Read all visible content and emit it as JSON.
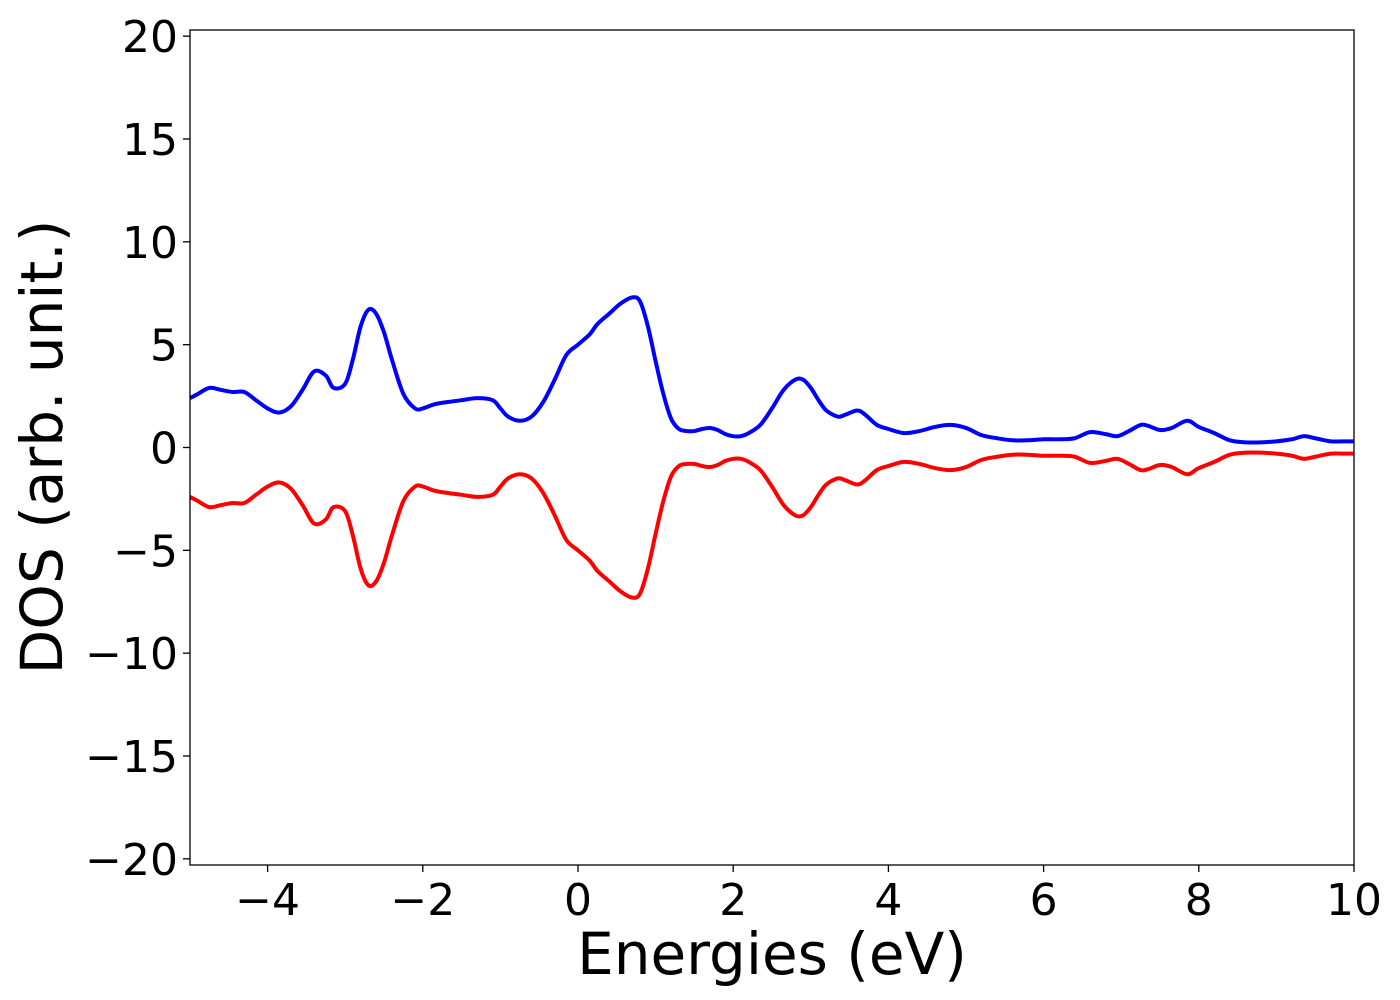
{
  "chart_data": {
    "type": "line",
    "xlabel": "Energies (eV)",
    "ylabel": "DOS (arb. unit.)",
    "xlim": [
      -5,
      10
    ],
    "ylim": [
      -20.3,
      20.3
    ],
    "xticks": [
      -4,
      -2,
      0,
      2,
      4,
      6,
      8,
      10
    ],
    "yticks": [
      -20,
      -15,
      -10,
      -5,
      0,
      5,
      10,
      15,
      20
    ],
    "xtick_labels": [
      "−4",
      "−2",
      "0",
      "2",
      "4",
      "6",
      "8",
      "10"
    ],
    "ytick_labels": [
      "−20",
      "−15",
      "−10",
      "−5",
      "0",
      "5",
      "10",
      "15",
      "20"
    ],
    "grid": false,
    "legend": "none",
    "series": [
      {
        "color": "#0000ff",
        "x": [
          -5.0,
          -4.9,
          -4.75,
          -4.6,
          -4.45,
          -4.3,
          -4.15,
          -4.0,
          -3.85,
          -3.7,
          -3.55,
          -3.4,
          -3.25,
          -3.15,
          -3.0,
          -2.9,
          -2.8,
          -2.7,
          -2.6,
          -2.5,
          -2.4,
          -2.25,
          -2.1,
          -2.0,
          -1.85,
          -1.7,
          -1.5,
          -1.3,
          -1.1,
          -1.0,
          -0.9,
          -0.75,
          -0.6,
          -0.45,
          -0.3,
          -0.15,
          0.0,
          0.15,
          0.25,
          0.4,
          0.55,
          0.7,
          0.8,
          0.9,
          1.0,
          1.1,
          1.2,
          1.3,
          1.4,
          1.5,
          1.6,
          1.7,
          1.8,
          1.9,
          2.0,
          2.1,
          2.2,
          2.35,
          2.5,
          2.65,
          2.8,
          2.9,
          3.0,
          3.1,
          3.2,
          3.35,
          3.45,
          3.6,
          3.7,
          3.85,
          4.0,
          4.2,
          4.4,
          4.6,
          4.8,
          5.0,
          5.2,
          5.4,
          5.6,
          5.8,
          6.0,
          6.2,
          6.4,
          6.6,
          6.8,
          6.95,
          7.1,
          7.25,
          7.35,
          7.5,
          7.65,
          7.85,
          8.0,
          8.2,
          8.4,
          8.6,
          8.8,
          9.0,
          9.2,
          9.35,
          9.5,
          9.7,
          9.85,
          10.0
        ],
        "y": [
          2.4,
          2.6,
          2.9,
          2.8,
          2.7,
          2.7,
          2.3,
          1.9,
          1.7,
          2.0,
          2.8,
          3.7,
          3.5,
          2.9,
          3.1,
          4.3,
          5.9,
          6.7,
          6.5,
          5.6,
          4.3,
          2.6,
          1.9,
          1.9,
          2.1,
          2.2,
          2.3,
          2.4,
          2.3,
          1.9,
          1.5,
          1.3,
          1.5,
          2.2,
          3.3,
          4.5,
          5.0,
          5.5,
          6.0,
          6.5,
          7.0,
          7.3,
          7.1,
          5.9,
          4.2,
          2.6,
          1.4,
          0.9,
          0.8,
          0.8,
          0.9,
          0.95,
          0.85,
          0.65,
          0.55,
          0.55,
          0.7,
          1.1,
          1.9,
          2.8,
          3.3,
          3.3,
          2.9,
          2.3,
          1.8,
          1.5,
          1.6,
          1.8,
          1.6,
          1.1,
          0.9,
          0.7,
          0.8,
          1.0,
          1.1,
          0.95,
          0.6,
          0.45,
          0.35,
          0.35,
          0.4,
          0.4,
          0.45,
          0.75,
          0.65,
          0.55,
          0.8,
          1.1,
          1.05,
          0.85,
          0.95,
          1.3,
          1.0,
          0.7,
          0.35,
          0.25,
          0.25,
          0.3,
          0.4,
          0.55,
          0.45,
          0.3,
          0.3,
          0.3
        ]
      },
      {
        "color": "#ff0000",
        "x": [
          -5.0,
          -4.9,
          -4.75,
          -4.6,
          -4.45,
          -4.3,
          -4.15,
          -4.0,
          -3.85,
          -3.7,
          -3.55,
          -3.4,
          -3.25,
          -3.15,
          -3.0,
          -2.9,
          -2.8,
          -2.7,
          -2.6,
          -2.5,
          -2.4,
          -2.25,
          -2.1,
          -2.0,
          -1.85,
          -1.7,
          -1.5,
          -1.3,
          -1.1,
          -1.0,
          -0.9,
          -0.75,
          -0.6,
          -0.45,
          -0.3,
          -0.15,
          0.0,
          0.15,
          0.25,
          0.4,
          0.55,
          0.7,
          0.8,
          0.9,
          1.0,
          1.1,
          1.2,
          1.3,
          1.4,
          1.5,
          1.6,
          1.7,
          1.8,
          1.9,
          2.0,
          2.1,
          2.2,
          2.35,
          2.5,
          2.65,
          2.8,
          2.9,
          3.0,
          3.1,
          3.2,
          3.35,
          3.45,
          3.6,
          3.7,
          3.85,
          4.0,
          4.2,
          4.4,
          4.6,
          4.8,
          5.0,
          5.2,
          5.4,
          5.6,
          5.8,
          6.0,
          6.2,
          6.4,
          6.6,
          6.8,
          6.95,
          7.1,
          7.25,
          7.35,
          7.5,
          7.65,
          7.85,
          8.0,
          8.2,
          8.4,
          8.6,
          8.8,
          9.0,
          9.2,
          9.35,
          9.5,
          9.7,
          9.85,
          10.0
        ],
        "y": [
          -2.4,
          -2.6,
          -2.9,
          -2.8,
          -2.7,
          -2.7,
          -2.3,
          -1.9,
          -1.7,
          -2.0,
          -2.8,
          -3.7,
          -3.5,
          -2.9,
          -3.1,
          -4.3,
          -5.9,
          -6.7,
          -6.5,
          -5.6,
          -4.3,
          -2.6,
          -1.9,
          -1.9,
          -2.1,
          -2.2,
          -2.3,
          -2.4,
          -2.3,
          -1.9,
          -1.5,
          -1.3,
          -1.5,
          -2.2,
          -3.3,
          -4.5,
          -5.0,
          -5.5,
          -6.0,
          -6.5,
          -7.0,
          -7.3,
          -7.1,
          -5.9,
          -4.2,
          -2.6,
          -1.4,
          -0.9,
          -0.8,
          -0.8,
          -0.9,
          -0.95,
          -0.85,
          -0.65,
          -0.55,
          -0.55,
          -0.7,
          -1.1,
          -1.9,
          -2.8,
          -3.3,
          -3.3,
          -2.9,
          -2.3,
          -1.8,
          -1.5,
          -1.6,
          -1.8,
          -1.6,
          -1.1,
          -0.9,
          -0.7,
          -0.8,
          -1.0,
          -1.1,
          -0.95,
          -0.6,
          -0.45,
          -0.35,
          -0.35,
          -0.4,
          -0.4,
          -0.45,
          -0.75,
          -0.65,
          -0.55,
          -0.8,
          -1.1,
          -1.05,
          -0.85,
          -0.95,
          -1.3,
          -1.0,
          -0.7,
          -0.35,
          -0.25,
          -0.25,
          -0.3,
          -0.4,
          -0.55,
          -0.45,
          -0.3,
          -0.3,
          -0.3
        ]
      }
    ]
  }
}
